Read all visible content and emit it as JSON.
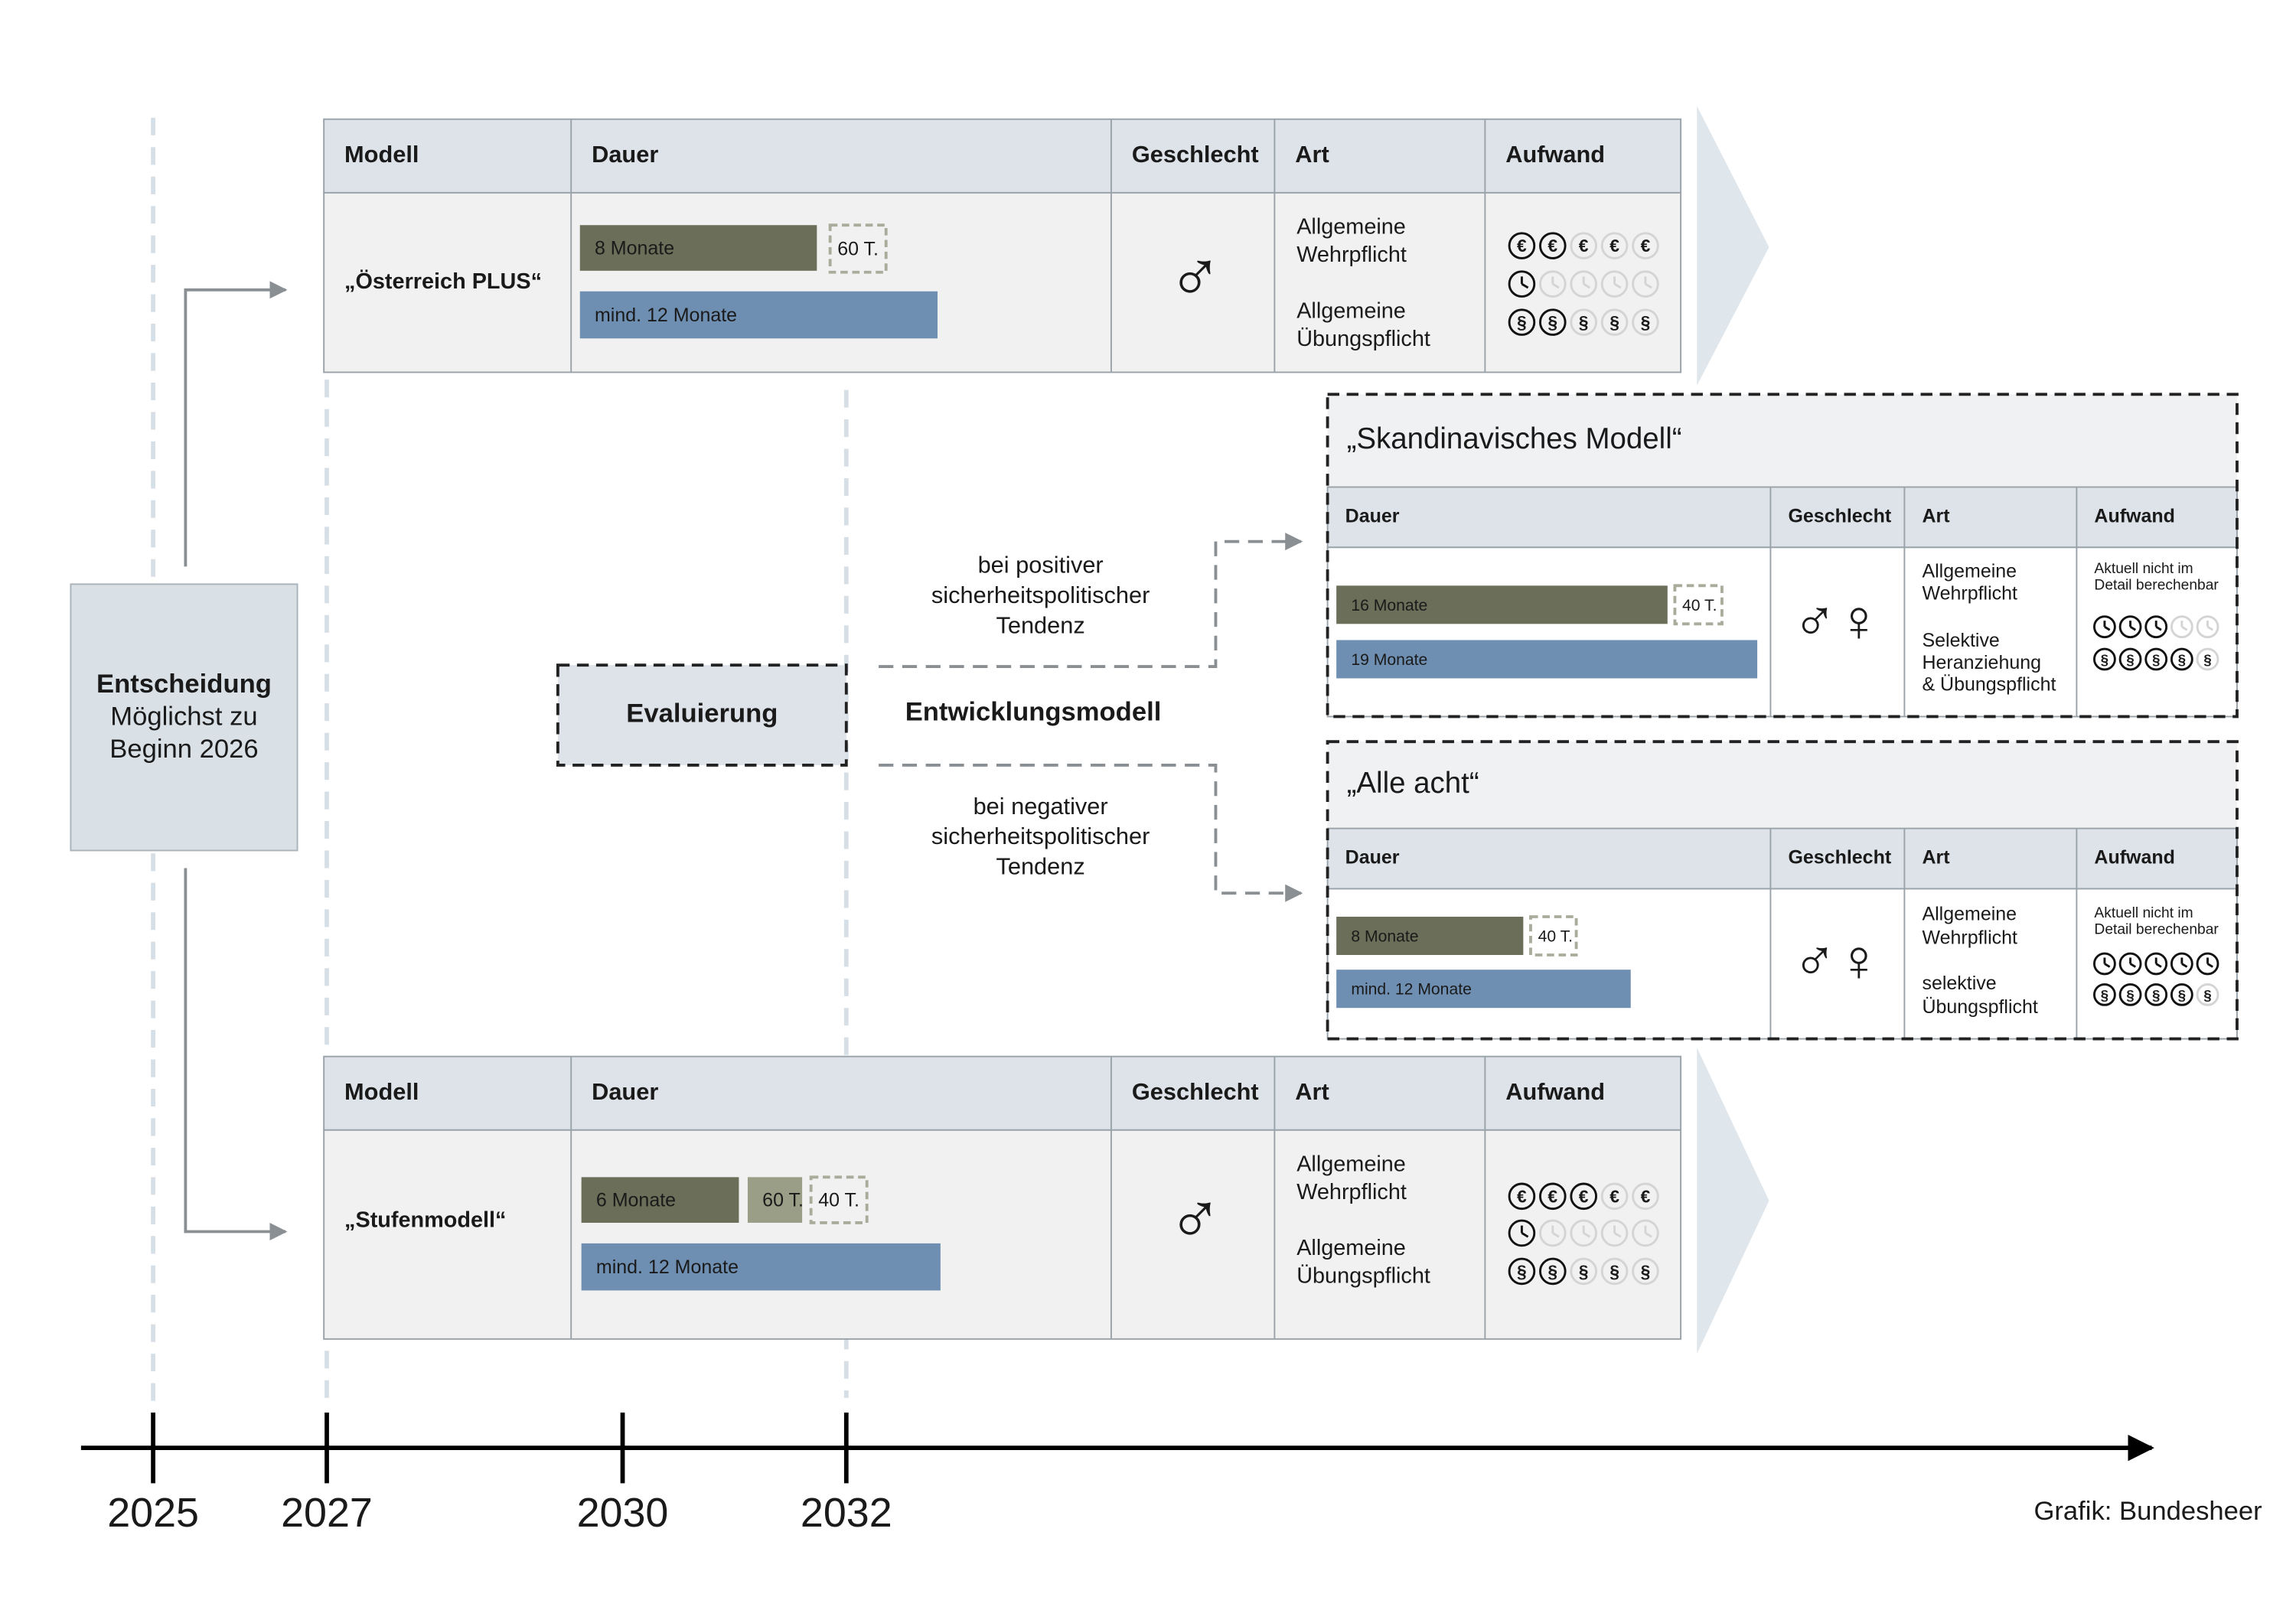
{
  "timeline": {
    "years": [
      "2025",
      "2027",
      "2030",
      "2032"
    ],
    "credit": "Grafik: Bundesheer"
  },
  "decision": {
    "title": "Entscheidung",
    "lines": [
      "Möglichst zu",
      "Beginn 2026"
    ]
  },
  "evaluation": "Evaluierung",
  "development_model": "Entwicklungsmodell",
  "positive": [
    "bei positiver",
    "sicherheitspolitischer",
    "Tendenz"
  ],
  "negative": [
    "bei negativer",
    "sicherheitspolitischer",
    "Tendenz"
  ],
  "symbols": {
    "euro": "€",
    "law": "§"
  },
  "models": [
    {
      "headers": [
        "Modell",
        "Dauer",
        "Geschlecht",
        "Art",
        "Aufwand"
      ],
      "name": "„Österreich PLUS“",
      "bars": [
        {
          "label": "8 Monate",
          "color": "#6b6e58"
        },
        {
          "label": "60 T.",
          "color": "dashed"
        },
        {
          "label": "mind. 12 Monate",
          "color": "#6e8fb2"
        }
      ],
      "gender": "♂",
      "art": [
        [
          "Allgemeine",
          "Wehrpflicht"
        ],
        [
          "Allgemeine",
          "Übungspflicht"
        ]
      ],
      "aufwand": {
        "scale": 5,
        "euro": 2,
        "time": 1,
        "law": 2
      }
    },
    {
      "headers": [
        "Modell",
        "Dauer",
        "Geschlecht",
        "Art",
        "Aufwand"
      ],
      "name": "„Stufenmodell“",
      "bars": [
        {
          "label": "6 Monate",
          "color": "#6b6e58"
        },
        {
          "label": "60 T.",
          "color": "#9a9e86"
        },
        {
          "label": "40 T.",
          "color": "dashed"
        },
        {
          "label": "mind. 12 Monate",
          "color": "#6e8fb2"
        }
      ],
      "gender": "♂",
      "art": [
        [
          "Allgemeine",
          "Wehrpflicht"
        ],
        [
          "Allgemeine",
          "Übungspflicht"
        ]
      ],
      "aufwand": {
        "scale": 5,
        "euro": 3,
        "time": 1,
        "law": 2
      }
    }
  ],
  "scenarios": [
    {
      "title": "„Skandinavisches Modell“",
      "headers": [
        "Dauer",
        "Geschlecht",
        "Art",
        "Aufwand"
      ],
      "bars": [
        {
          "label": "16 Monate",
          "color": "#6b6e58"
        },
        {
          "label": "40 T.",
          "color": "dashed"
        },
        {
          "label": "19 Monate",
          "color": "#6e8fb2"
        }
      ],
      "gender": "♂♀",
      "art": [
        [
          "Allgemeine",
          "Wehrpflicht"
        ],
        [
          "Selektive",
          "Heranziehung",
          "& Übungspflicht"
        ]
      ],
      "note": [
        "Aktuell nicht im",
        "Detail berechenbar"
      ],
      "aufwand": {
        "scale": 5,
        "time": 3,
        "law": 4
      }
    },
    {
      "title": "„Alle acht“",
      "headers": [
        "Dauer",
        "Geschlecht",
        "Art",
        "Aufwand"
      ],
      "bars": [
        {
          "label": "8 Monate",
          "color": "#6b6e58"
        },
        {
          "label": "40 T.",
          "color": "dashed"
        },
        {
          "label": "mind. 12 Monate",
          "color": "#6e8fb2"
        }
      ],
      "gender": "♂♀",
      "art": [
        [
          "Allgemeine",
          "Wehrpflicht"
        ],
        [
          "selektive",
          "Übungspflicht"
        ]
      ],
      "note": [
        "Aktuell nicht im",
        "Detail berechenbar"
      ],
      "aufwand": {
        "scale": 5,
        "time": 5,
        "law": 4
      }
    }
  ]
}
